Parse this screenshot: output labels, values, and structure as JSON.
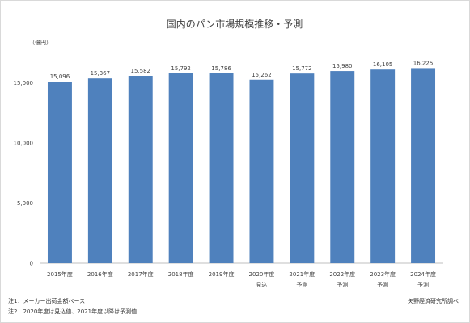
{
  "chart_data": {
    "type": "bar",
    "title": "国内のパン市場規模推移・予測",
    "unit_label": "（億円）",
    "categories": [
      [
        "2015年度"
      ],
      [
        "2016年度"
      ],
      [
        "2017年度"
      ],
      [
        "2018年度"
      ],
      [
        "2019年度"
      ],
      [
        "2020年度",
        "見込"
      ],
      [
        "2021年度",
        "予測"
      ],
      [
        "2022年度",
        "予測"
      ],
      [
        "2023年度",
        "予測"
      ],
      [
        "2024年度",
        "予測"
      ]
    ],
    "values": [
      15096,
      15367,
      15582,
      15792,
      15786,
      15262,
      15772,
      15980,
      16105,
      16225
    ],
    "data_labels": [
      "15,096",
      "15,367",
      "15,582",
      "15,792",
      "15,786",
      "15,262",
      "15,772",
      "15,980",
      "16,105",
      "16,225"
    ],
    "ylim": [
      0,
      18000
    ],
    "yticks": [
      0,
      5000,
      10000,
      15000
    ],
    "ytick_labels": [
      "0",
      "5,000",
      "10,000",
      "15,000"
    ],
    "grid": false,
    "bar_color": "#4f81bd"
  },
  "notes": [
    "注1．メーカー出荷金額ベース",
    "注2．2020年度は見込値、2021年度以降は予測値"
  ],
  "source": "矢野経済研究所調べ"
}
